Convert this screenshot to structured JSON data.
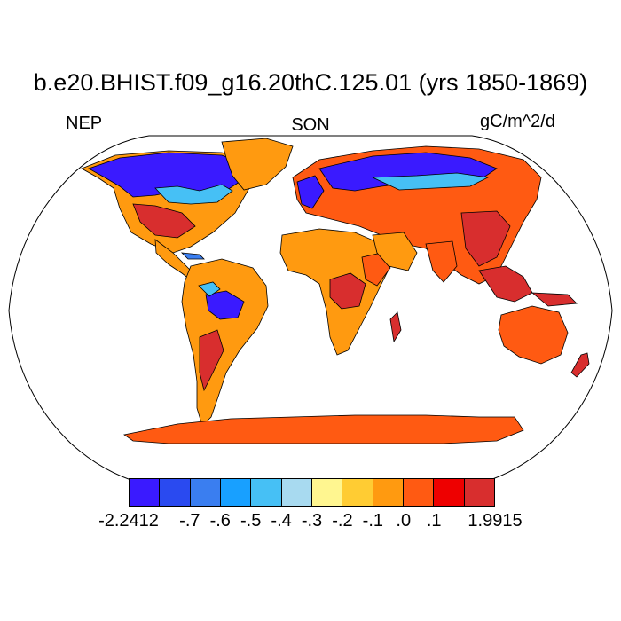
{
  "title": "b.e20.BHIST.f09_g16.20thC.125.01 (yrs 1850-1869)",
  "left_label": "NEP",
  "center_label": "SON",
  "right_label": "gC/m^2/d",
  "colorbar": {
    "colors": [
      "#3a1aff",
      "#2a4af0",
      "#3a7ef0",
      "#18a0ff",
      "#46c0f5",
      "#a8daf0",
      "#fff690",
      "#ffcc33",
      "#ff9a10",
      "#ff5a12",
      "#ee0000",
      "#d82e2e"
    ],
    "labels": [
      "-2.2412",
      "-.7",
      "-.6",
      "-.5",
      "-.4",
      "-.3",
      "-.2",
      "-.1",
      ".0",
      ".1",
      "1.9915"
    ]
  },
  "map": {
    "projection": "Robinson",
    "field": "NEP",
    "season": "SON",
    "units": "gC/m^2/d"
  }
}
